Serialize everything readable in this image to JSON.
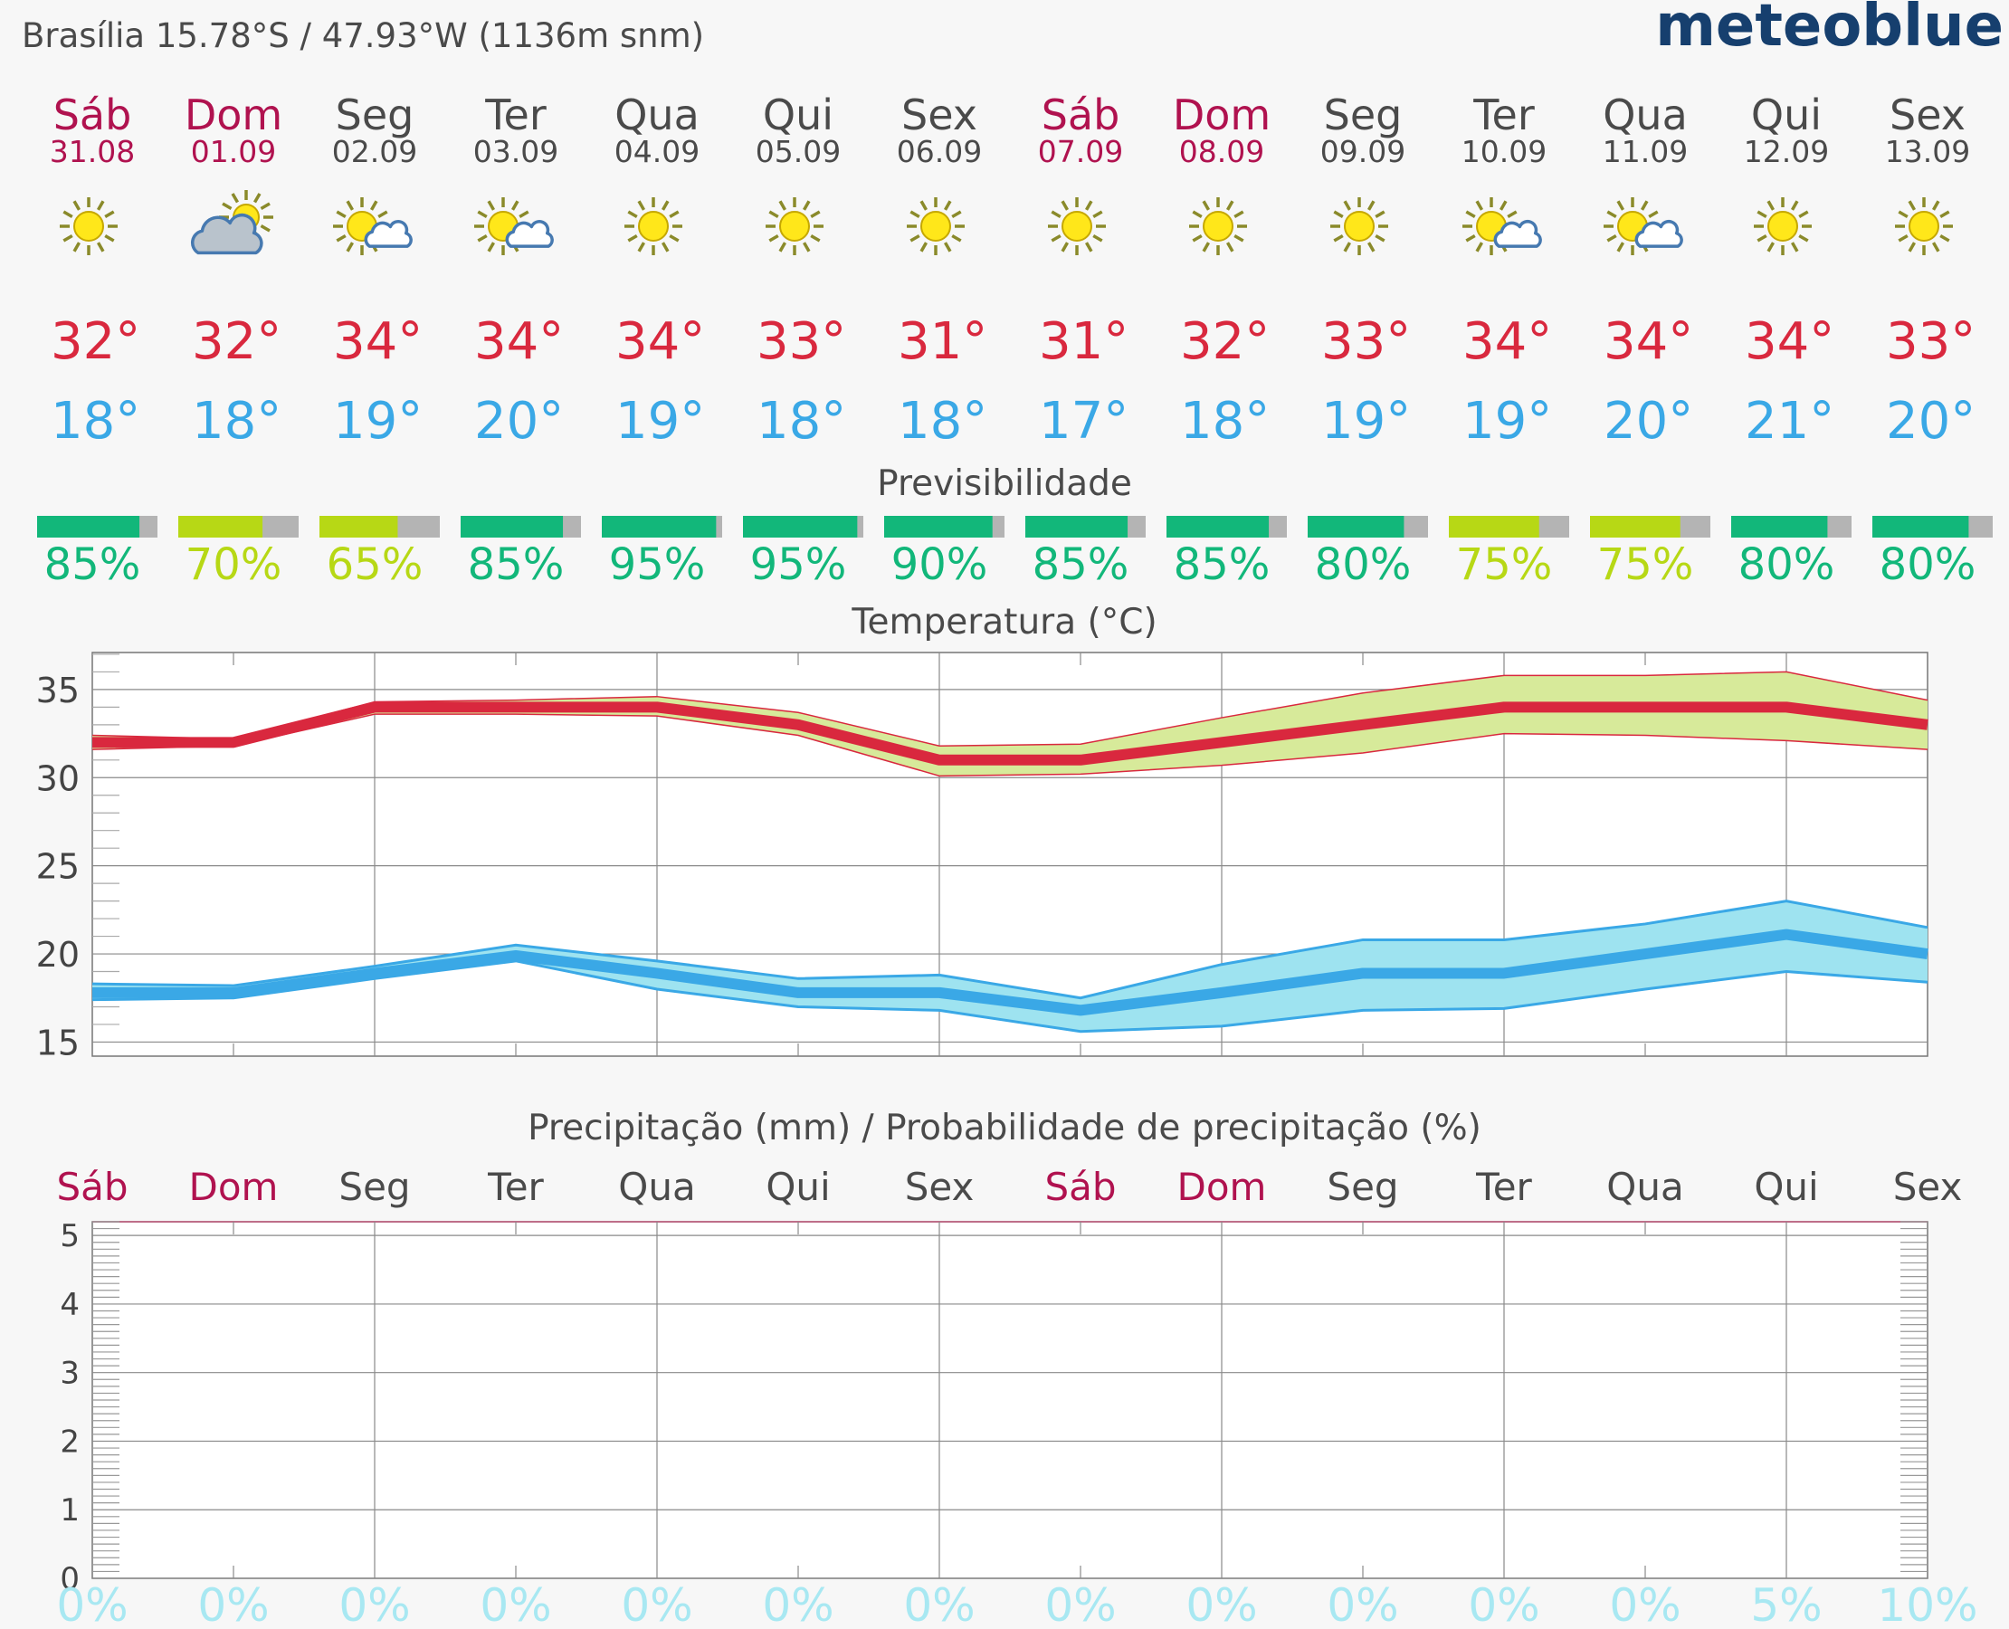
{
  "header": {
    "location": "Brasília  15.78°S / 47.93°W (1136m snm)",
    "brand": "meteoblue"
  },
  "section_titles": {
    "predictability": "Previsibilidade",
    "temperature": "Temperatura (°C)",
    "precipitation": "Precipitação (mm) / Probabilidade de precipitação (%)"
  },
  "colors": {
    "weekend": "#b0124f",
    "weekday": "#4a4a4a",
    "tmax": "#d9283e",
    "tmin": "#3aa8e6",
    "pred_high": "#12b77a",
    "pred_mid": "#b7d815",
    "pred_rest": "#b4b4b4",
    "max_band": "#d7ea9a",
    "min_band": "#9ee3f0"
  },
  "days": [
    {
      "dow": "Sáb",
      "date": "31.08",
      "weekend": true,
      "icon": "sun-icon",
      "tmax": "32°",
      "tmin": "18°",
      "predictability": 85,
      "pred_label": "85%",
      "precip_prob": "0%"
    },
    {
      "dow": "Dom",
      "date": "01.09",
      "weekend": true,
      "icon": "cloud-sun-icon",
      "tmax": "32°",
      "tmin": "18°",
      "predictability": 70,
      "pred_label": "70%",
      "precip_prob": "0%"
    },
    {
      "dow": "Seg",
      "date": "02.09",
      "weekend": false,
      "icon": "sun-small-cloud-icon",
      "tmax": "34°",
      "tmin": "19°",
      "predictability": 65,
      "pred_label": "65%",
      "precip_prob": "0%"
    },
    {
      "dow": "Ter",
      "date": "03.09",
      "weekend": false,
      "icon": "sun-small-cloud-icon",
      "tmax": "34°",
      "tmin": "20°",
      "predictability": 85,
      "pred_label": "85%",
      "precip_prob": "0%"
    },
    {
      "dow": "Qua",
      "date": "04.09",
      "weekend": false,
      "icon": "sun-icon",
      "tmax": "34°",
      "tmin": "19°",
      "predictability": 95,
      "pred_label": "95%",
      "precip_prob": "0%"
    },
    {
      "dow": "Qui",
      "date": "05.09",
      "weekend": false,
      "icon": "sun-icon",
      "tmax": "33°",
      "tmin": "18°",
      "predictability": 95,
      "pred_label": "95%",
      "precip_prob": "0%"
    },
    {
      "dow": "Sex",
      "date": "06.09",
      "weekend": false,
      "icon": "sun-icon",
      "tmax": "31°",
      "tmin": "18°",
      "predictability": 90,
      "pred_label": "90%",
      "precip_prob": "0%"
    },
    {
      "dow": "Sáb",
      "date": "07.09",
      "weekend": true,
      "icon": "sun-icon",
      "tmax": "31°",
      "tmin": "17°",
      "predictability": 85,
      "pred_label": "85%",
      "precip_prob": "0%"
    },
    {
      "dow": "Dom",
      "date": "08.09",
      "weekend": true,
      "icon": "sun-icon",
      "tmax": "32°",
      "tmin": "18°",
      "predictability": 85,
      "pred_label": "85%",
      "precip_prob": "0%"
    },
    {
      "dow": "Seg",
      "date": "09.09",
      "weekend": false,
      "icon": "sun-icon",
      "tmax": "33°",
      "tmin": "19°",
      "predictability": 80,
      "pred_label": "80%",
      "precip_prob": "0%"
    },
    {
      "dow": "Ter",
      "date": "10.09",
      "weekend": false,
      "icon": "sun-small-cloud-icon",
      "tmax": "34°",
      "tmin": "19°",
      "predictability": 75,
      "pred_label": "75%",
      "precip_prob": "0%"
    },
    {
      "dow": "Qua",
      "date": "11.09",
      "weekend": false,
      "icon": "sun-small-cloud-icon",
      "tmax": "34°",
      "tmin": "20°",
      "predictability": 75,
      "pred_label": "75%",
      "precip_prob": "0%"
    },
    {
      "dow": "Qui",
      "date": "12.09",
      "weekend": false,
      "icon": "sun-icon",
      "tmax": "34°",
      "tmin": "21°",
      "predictability": 80,
      "pred_label": "80%",
      "precip_prob": "5%"
    },
    {
      "dow": "Sex",
      "date": "13.09",
      "weekend": false,
      "icon": "sun-icon",
      "tmax": "33°",
      "tmin": "20°",
      "predictability": 80,
      "pred_label": "80%",
      "precip_prob": "10%"
    }
  ],
  "chart_data": [
    {
      "type": "line",
      "title": "Temperatura (°C)",
      "categories": [
        "Sáb 31.08",
        "Dom 01.09",
        "Seg 02.09",
        "Ter 03.09",
        "Qua 04.09",
        "Qui 05.09",
        "Sex 06.09",
        "Sáb 07.09",
        "Dom 08.09",
        "Seg 09.09",
        "Ter 10.09",
        "Qua 11.09",
        "Qui 12.09",
        "Sex 13.09"
      ],
      "ylim": [
        14.2,
        37.1
      ],
      "yticks": [
        15,
        20,
        25,
        30,
        35
      ],
      "grid": true,
      "series": [
        {
          "values": [
            32,
            32,
            34,
            34,
            34,
            33,
            31,
            31,
            32,
            33,
            34,
            34,
            34,
            33
          ],
          "band_low": [
            31.6,
            31.8,
            33.6,
            33.6,
            33.5,
            32.4,
            30.1,
            30.2,
            30.7,
            31.4,
            32.5,
            32.4,
            32.1,
            31.6
          ],
          "band_high": [
            32.4,
            32.2,
            34.3,
            34.4,
            34.6,
            33.7,
            31.8,
            31.9,
            33.4,
            34.8,
            35.8,
            35.8,
            36.0,
            34.4
          ]
        },
        {
          "values": [
            17.8,
            17.8,
            18.9,
            19.9,
            18.9,
            17.8,
            17.8,
            16.8,
            17.8,
            18.9,
            18.9,
            20,
            21.1,
            20
          ],
          "band_low": [
            17.4,
            17.5,
            18.6,
            19.6,
            18.0,
            17.0,
            16.8,
            15.6,
            15.9,
            16.8,
            16.9,
            18.0,
            19.0,
            18.4
          ],
          "band_high": [
            18.3,
            18.2,
            19.3,
            20.5,
            19.6,
            18.6,
            18.8,
            17.5,
            19.4,
            20.8,
            20.8,
            21.7,
            23.0,
            21.5
          ]
        }
      ]
    },
    {
      "type": "bar",
      "title": "Precipitação (mm) / Probabilidade de precipitação (%)",
      "categories": [
        "Sáb",
        "Dom",
        "Seg",
        "Ter",
        "Qua",
        "Qui",
        "Sex",
        "Sáb",
        "Dom",
        "Seg",
        "Ter",
        "Qua",
        "Qui",
        "Sex"
      ],
      "values": [
        0,
        0,
        0,
        0,
        0,
        0,
        0,
        0,
        0,
        0,
        0,
        0,
        0,
        0
      ],
      "probabilities": [
        0,
        0,
        0,
        0,
        0,
        0,
        0,
        0,
        0,
        0,
        0,
        0,
        5,
        10
      ],
      "ylim": [
        0,
        5.2
      ],
      "yticks": [
        0,
        1,
        2,
        3,
        4,
        5
      ],
      "grid": true
    }
  ]
}
